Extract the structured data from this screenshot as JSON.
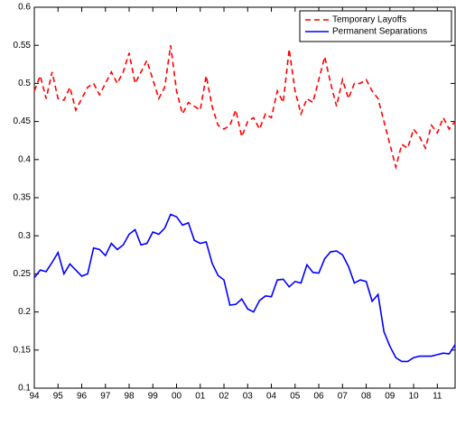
{
  "chart_data": {
    "type": "line",
    "x": [
      1994,
      1994.25,
      1994.5,
      1994.75,
      1995,
      1995.25,
      1995.5,
      1995.75,
      1996,
      1996.25,
      1996.5,
      1996.75,
      1997,
      1997.25,
      1997.5,
      1997.75,
      1998,
      1998.25,
      1998.5,
      1998.75,
      1999,
      1999.25,
      1999.5,
      1999.75,
      2000,
      2000.25,
      2000.5,
      2000.75,
      2001,
      2001.25,
      2001.5,
      2001.75,
      2002,
      2002.25,
      2002.5,
      2002.75,
      2003,
      2003.25,
      2003.5,
      2003.75,
      2004,
      2004.25,
      2004.5,
      2004.75,
      2005,
      2005.25,
      2005.5,
      2005.75,
      2006,
      2006.25,
      2006.5,
      2006.75,
      2007,
      2007.25,
      2007.5,
      2007.75,
      2008,
      2008.25,
      2008.5,
      2008.75,
      2009,
      2009.25,
      2009.5,
      2009.75,
      2010,
      2010.25,
      2010.5,
      2010.75,
      2011,
      2011.25,
      2011.5,
      2011.75
    ],
    "series": [
      {
        "name": "Temporary Layoffs",
        "color": "#ff0000",
        "dashed": true,
        "values": [
          0.49,
          0.51,
          0.48,
          0.515,
          0.48,
          0.478,
          0.495,
          0.465,
          0.48,
          0.495,
          0.5,
          0.485,
          0.5,
          0.515,
          0.5,
          0.515,
          0.54,
          0.5,
          0.515,
          0.53,
          0.505,
          0.48,
          0.495,
          0.55,
          0.49,
          0.46,
          0.475,
          0.47,
          0.465,
          0.51,
          0.47,
          0.445,
          0.44,
          0.445,
          0.465,
          0.43,
          0.45,
          0.455,
          0.44,
          0.46,
          0.455,
          0.49,
          0.475,
          0.545,
          0.49,
          0.46,
          0.48,
          0.475,
          0.505,
          0.535,
          0.5,
          0.47,
          0.505,
          0.48,
          0.5,
          0.5,
          0.505,
          0.49,
          0.48,
          0.45,
          0.42,
          0.39,
          0.42,
          0.415,
          0.44,
          0.43,
          0.415,
          0.445,
          0.435,
          0.455,
          0.44,
          0.45
        ]
      },
      {
        "name": "Permanent Separations",
        "color": "#0000ff",
        "dashed": false,
        "values": [
          0.245,
          0.255,
          0.253,
          0.265,
          0.278,
          0.25,
          0.263,
          0.255,
          0.247,
          0.25,
          0.284,
          0.282,
          0.274,
          0.29,
          0.282,
          0.288,
          0.302,
          0.308,
          0.288,
          0.29,
          0.305,
          0.302,
          0.31,
          0.328,
          0.325,
          0.314,
          0.317,
          0.294,
          0.29,
          0.292,
          0.264,
          0.248,
          0.242,
          0.209,
          0.21,
          0.217,
          0.204,
          0.2,
          0.215,
          0.221,
          0.22,
          0.242,
          0.243,
          0.233,
          0.24,
          0.238,
          0.262,
          0.252,
          0.251,
          0.27,
          0.279,
          0.28,
          0.275,
          0.26,
          0.238,
          0.242,
          0.24,
          0.214,
          0.223,
          0.174,
          0.155,
          0.14,
          0.135,
          0.135,
          0.14,
          0.142,
          0.142,
          0.142,
          0.144,
          0.146,
          0.145,
          0.157
        ]
      }
    ],
    "xlim": [
      1994,
      2011.75
    ],
    "xticks": [
      {
        "value": 1994,
        "label": "94"
      },
      {
        "value": 1995,
        "label": "95"
      },
      {
        "value": 1996,
        "label": "96"
      },
      {
        "value": 1997,
        "label": "97"
      },
      {
        "value": 1998,
        "label": "98"
      },
      {
        "value": 1999,
        "label": "99"
      },
      {
        "value": 2000,
        "label": "00"
      },
      {
        "value": 2001,
        "label": "01"
      },
      {
        "value": 2002,
        "label": "02"
      },
      {
        "value": 2003,
        "label": "03"
      },
      {
        "value": 2004,
        "label": "04"
      },
      {
        "value": 2005,
        "label": "05"
      },
      {
        "value": 2006,
        "label": "06"
      },
      {
        "value": 2007,
        "label": "07"
      },
      {
        "value": 2008,
        "label": "08"
      },
      {
        "value": 2009,
        "label": "09"
      },
      {
        "value": 2010,
        "label": "10"
      },
      {
        "value": 2011,
        "label": "11"
      }
    ],
    "ylim": [
      0.1,
      0.6
    ],
    "yticks": [
      0.1,
      0.15,
      0.2,
      0.25,
      0.3,
      0.35,
      0.4,
      0.45,
      0.5,
      0.55,
      0.6
    ],
    "legend": "top-right"
  }
}
